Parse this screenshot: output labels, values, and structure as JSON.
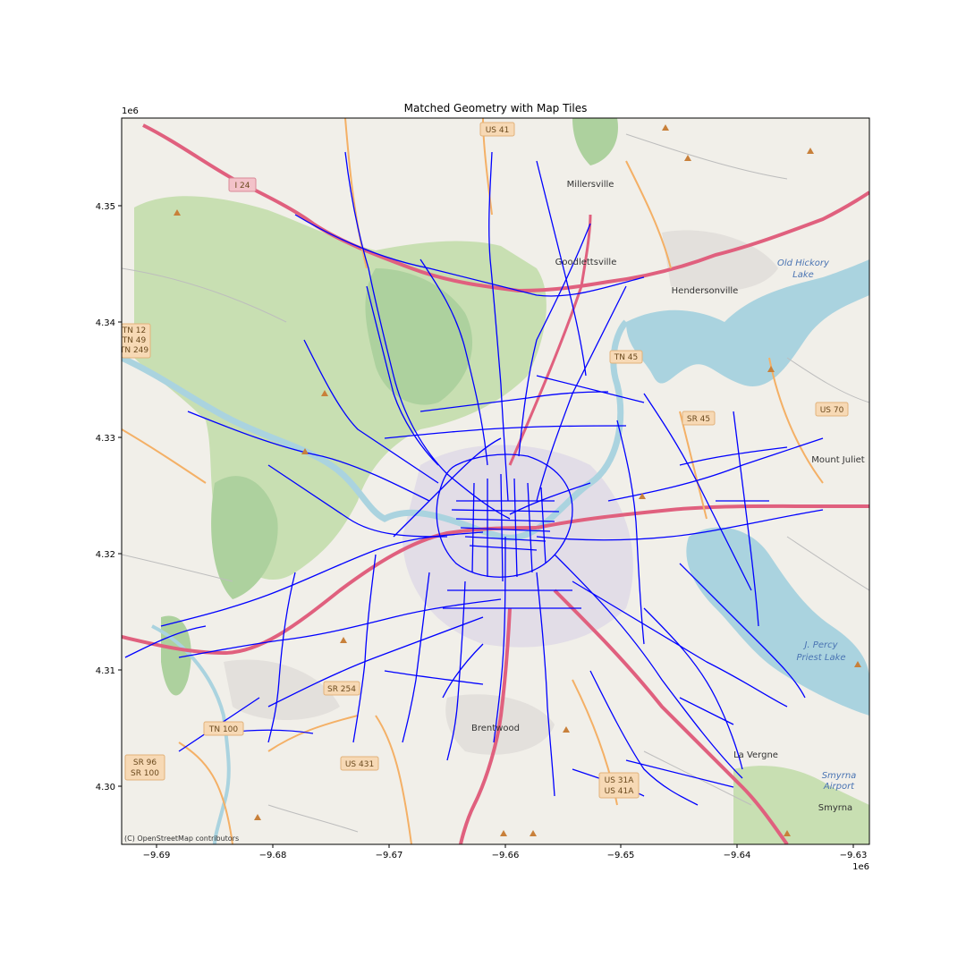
{
  "figure": {
    "title": "Matched Geometry with Map Tiles",
    "x_exponent": "1e6",
    "y_exponent": "1e6",
    "x_ticks": [
      "−9.69",
      "−9.68",
      "−9.67",
      "−9.66",
      "−9.65",
      "−9.64",
      "−9.63"
    ],
    "y_ticks": [
      "4.35",
      "4.34",
      "4.33",
      "4.32",
      "4.31",
      "4.30"
    ],
    "credit": "(C) OpenStreetMap contributors"
  },
  "places": [
    {
      "name": "Millersville"
    },
    {
      "name": "Goodlettsville"
    },
    {
      "name": "Hendersonville"
    },
    {
      "name": "Mount Juliet"
    },
    {
      "name": "Brentwood"
    },
    {
      "name": "La Vergne"
    },
    {
      "name": "Smyrna"
    }
  ],
  "water_labels": [
    "Old Hickory",
    "Lake",
    "J. Percy",
    "Priest Lake",
    "Smyrna",
    "Airport"
  ],
  "shields": [
    {
      "label": "US 41",
      "color": "#f7d9b5"
    },
    {
      "label": "I 24",
      "color": "#f3c2c9"
    },
    {
      "label": "TN 12",
      "color": "#f7d9b5"
    },
    {
      "label": "TN 49",
      "color": "#f7d9b5"
    },
    {
      "label": "TN 249",
      "color": "#f7d9b5"
    },
    {
      "label": "TN 45",
      "color": "#f7d9b5"
    },
    {
      "label": "SR 45",
      "color": "#f7d9b5"
    },
    {
      "label": "US 70",
      "color": "#f7d9b5"
    },
    {
      "label": "SR 254",
      "color": "#f7d9b5"
    },
    {
      "label": "TN 100",
      "color": "#f7d9b5"
    },
    {
      "label": "SR 96",
      "color": "#f7d9b5"
    },
    {
      "label": "SR 100",
      "color": "#f7d9b5"
    },
    {
      "label": "US 431",
      "color": "#f7d9b5"
    },
    {
      "label": "US 31A",
      "color": "#f7d9b5"
    },
    {
      "label": "US 41A",
      "color": "#f7d9b5"
    }
  ],
  "colors": {
    "land": "#f1efe9",
    "forest": "#add19e",
    "water": "#aad3df",
    "route": "#0000ff",
    "highway": "#e0607e",
    "urban": "#dcd6e6"
  }
}
